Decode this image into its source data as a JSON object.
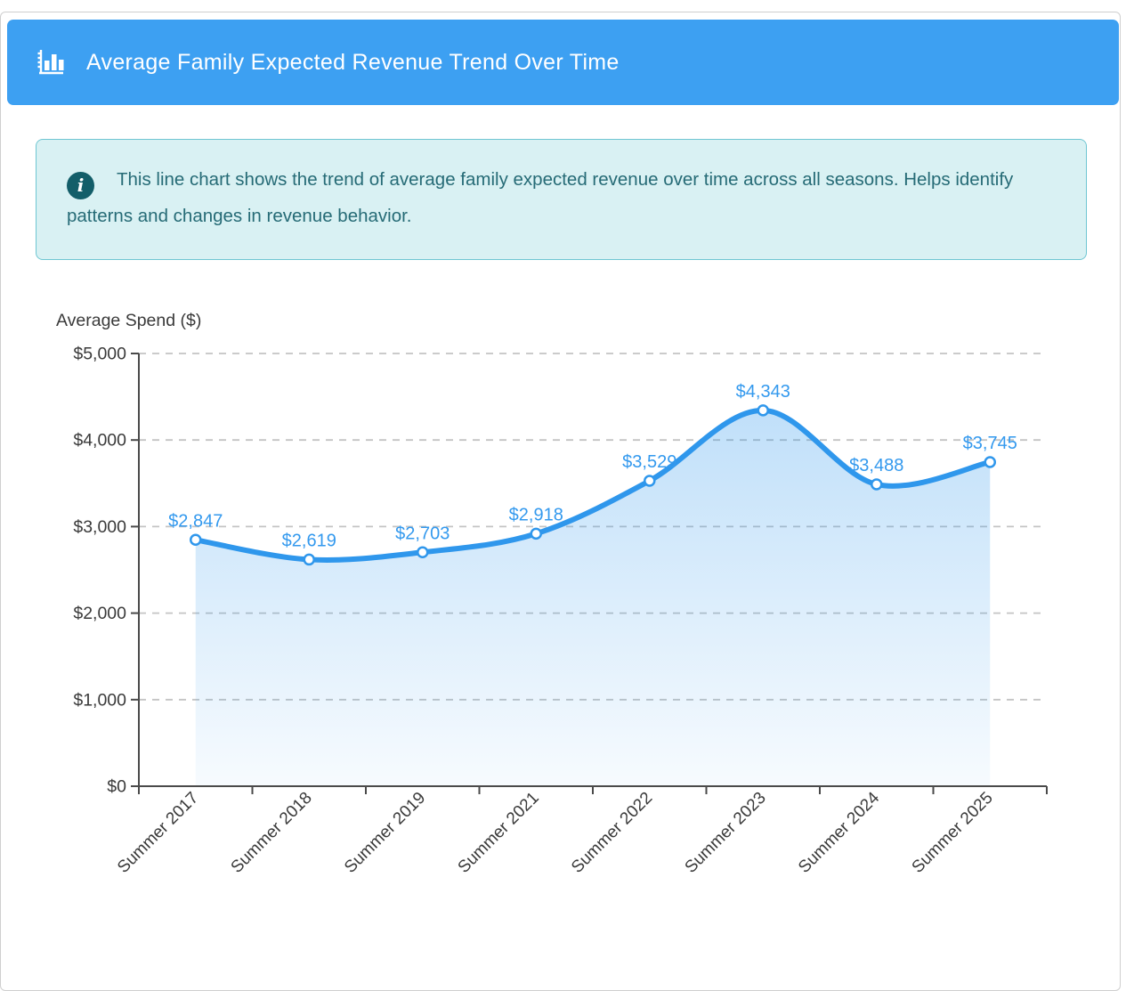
{
  "header": {
    "title": "Average Family Expected Revenue Trend Over Time",
    "icon": "bar-chart-icon"
  },
  "info_banner": {
    "icon": "info-icon",
    "icon_glyph": "i",
    "text": "This line chart shows the trend of average family expected revenue over time across all seasons. Helps identify patterns and changes in revenue behavior."
  },
  "chart_data": {
    "type": "line",
    "title": "",
    "xlabel": "",
    "ylabel": "Average Spend ($)",
    "categories": [
      "Summer 2017",
      "Summer 2018",
      "Summer 2019",
      "Summer 2021",
      "Summer 2022",
      "Summer 2023",
      "Summer 2024",
      "Summer 2025"
    ],
    "values": [
      2847,
      2619,
      2703,
      2918,
      3529,
      4343,
      3488,
      3745
    ],
    "point_labels": [
      "$2,847",
      "$2,619",
      "$2,703",
      "$2,918",
      "$3,529",
      "$4,343",
      "$3,488",
      "$3,745"
    ],
    "y_ticks": [
      {
        "value": 0,
        "label": "$0"
      },
      {
        "value": 1000,
        "label": "$1,000"
      },
      {
        "value": 2000,
        "label": "$2,000"
      },
      {
        "value": 3000,
        "label": "$3,000"
      },
      {
        "value": 4000,
        "label": "$4,000"
      },
      {
        "value": 5000,
        "label": "$5,000"
      }
    ],
    "ylim": [
      0,
      5000
    ],
    "grid": {
      "horizontal": true,
      "vertical": false,
      "style": "dashed"
    },
    "legend": "none",
    "smooth": true,
    "area_fill": true,
    "marker": "open-circle",
    "x_label_rotation": -45
  },
  "colors": {
    "header_bg": "#3da0f2",
    "header_text": "#ffffff",
    "info_bg": "#d9f1f3",
    "info_border": "#6fc6d2",
    "info_text": "#266b76",
    "info_icon_bg": "#135e69",
    "line": "#2f97ec",
    "marker_fill": "#ffffff",
    "point_label": "#3399ee",
    "area_top": "rgba(47,151,236,0.30)",
    "area_bottom": "rgba(47,151,236,0.04)",
    "axis": "#4a4a4a",
    "grid_line": "#c4c4c4",
    "tick_text": "#3a3a3a"
  }
}
